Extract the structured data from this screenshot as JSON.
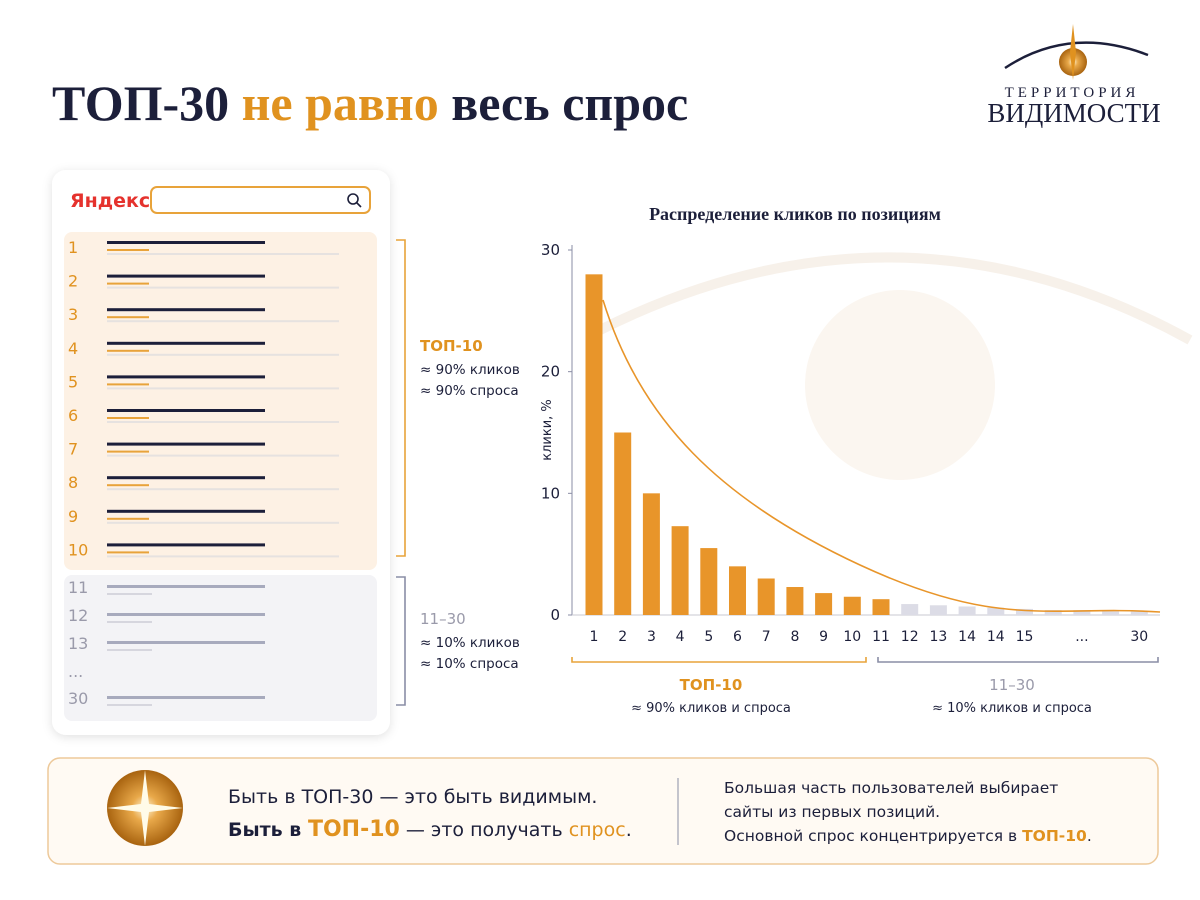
{
  "header": {
    "title": [
      "ТОП-30",
      "не равно",
      "весь спрос"
    ]
  },
  "logo": {
    "line1": "ТЕРРИТОРИЯ",
    "line2": "ВИДИМОСТИ"
  },
  "serp": {
    "brand": "Яндекс",
    "top": {
      "positions": [
        "1",
        "2",
        "3",
        "4",
        "5",
        "6",
        "7",
        "8",
        "9",
        "10"
      ],
      "label": "ТОП-10",
      "notes": [
        "≈ 90% кликов",
        "≈ 90% спроса"
      ]
    },
    "rest": {
      "positions": [
        "11",
        "12",
        "13",
        "...",
        "30"
      ],
      "label": "11–30",
      "notes": [
        "≈ 10% кликов",
        "≈ 10% спроса"
      ]
    }
  },
  "chart_data": {
    "type": "bar",
    "title": "Распределение кликов по позициям",
    "y_label": "клики, %",
    "categories": [
      "1",
      "2",
      "3",
      "4",
      "5",
      "6",
      "7",
      "8",
      "9",
      "10",
      "11",
      "12",
      "13",
      "14",
      "14",
      "15",
      null,
      "...",
      null,
      "30"
    ],
    "values": [
      28,
      15,
      10,
      7.3,
      5.5,
      4,
      3,
      2.3,
      1.8,
      1.5,
      1.3,
      0.9,
      0.8,
      0.7,
      0.6,
      0.5,
      0.4,
      0.4,
      0.3,
      0.3
    ],
    "colors": [
      "#e8952a",
      "#e8952a",
      "#e8952a",
      "#e8952a",
      "#e8952a",
      "#e8952a",
      "#e8952a",
      "#e8952a",
      "#e8952a",
      "#e8952a",
      "#e8952a",
      "#dcdce6",
      "#dcdce6",
      "#dcdce6",
      "#dcdce6",
      "#dcdce6",
      "#dcdce6",
      "#dcdce6",
      "#dcdce6",
      "#dcdce6"
    ],
    "ylim": [
      0,
      30
    ],
    "yticks": [
      0,
      10,
      20,
      30
    ],
    "groups": [
      {
        "label": "ТОП-10",
        "note": "≈ 90% кликов и спроса"
      },
      {
        "label": "11–30",
        "note": "≈ 10% кликов и спроса"
      }
    ]
  },
  "footer": {
    "left": [
      [
        "Быть в ТОП-30 — это быть видимым."
      ],
      [
        "Быть в ",
        "ТОП-10",
        " — это получать ",
        "спрос",
        "."
      ]
    ],
    "right": [
      [
        "Большая часть пользователей выбирает"
      ],
      [
        "сайты из первых позиций."
      ],
      [
        "Основной спрос концентрируется в ",
        "ТОП-10",
        "."
      ]
    ]
  }
}
